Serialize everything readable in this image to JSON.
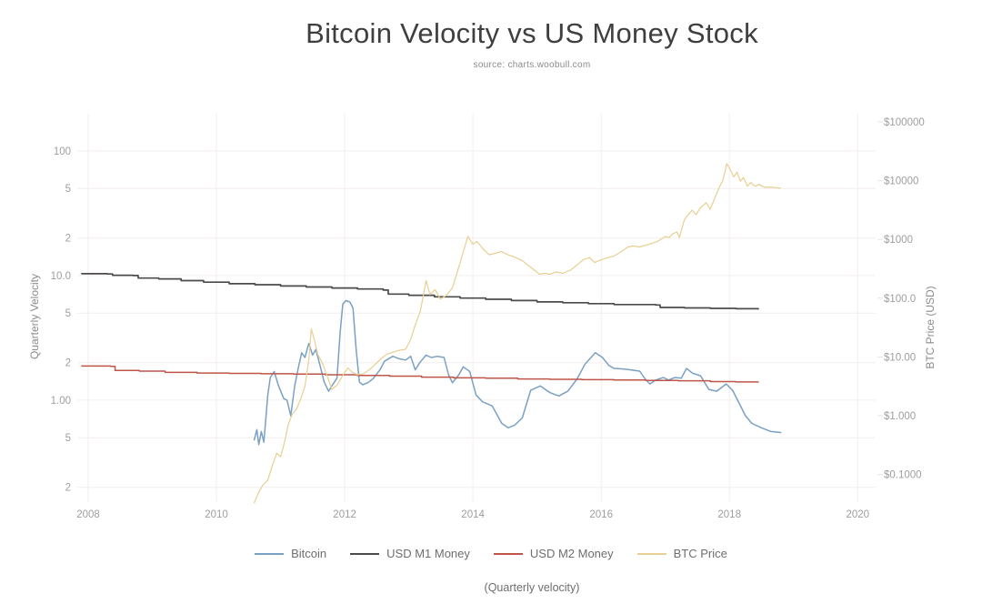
{
  "header": {
    "title": "Bitcoin Velocity vs US Money Stock",
    "subtitle": "source: charts.woobull.com"
  },
  "caption": "(Quarterly velocity)",
  "colors": {
    "bitcoin": "#7aa0c4",
    "usd_m1": "#4b4b4b",
    "usd_m2": "#bf5549",
    "btc_price": "#e8cf92",
    "grid": "#f4eeee",
    "tick_text": "#9e9e9e",
    "title_text": "#3f3f3f"
  },
  "chart_data": {
    "type": "line",
    "title": "Bitcoin Velocity vs US Money Stock",
    "xlabel": "",
    "ylabel_left": "Quarterly Velocity",
    "ylabel_right": "BTC Price (USD)",
    "grid": true,
    "legend_position": "bottom",
    "x_axis": {
      "scale": "linear",
      "range": [
        2007.83,
        2020.28
      ],
      "ticks": [
        2008,
        2010,
        2012,
        2014,
        2016,
        2018,
        2020
      ]
    },
    "y_left": {
      "label": "Quarterly Velocity",
      "scale": "log",
      "range": [
        0.152,
        199
      ],
      "ticks": [
        [
          100,
          "100"
        ],
        [
          50,
          "5"
        ],
        [
          20,
          "2"
        ],
        [
          10,
          "10.0"
        ],
        [
          5,
          "5"
        ],
        [
          2,
          "2"
        ],
        [
          1,
          "1.00"
        ],
        [
          0.5,
          "5"
        ],
        [
          0.2,
          "2"
        ]
      ]
    },
    "y_right": {
      "label": "BTC Price (USD)",
      "scale": "log",
      "range": [
        0.0339,
        137700
      ],
      "ticks": [
        [
          100000,
          "$100000"
        ],
        [
          10000,
          "$10000"
        ],
        [
          1000,
          "$1000"
        ],
        [
          100,
          "$100.0"
        ],
        [
          10,
          "$10.00"
        ],
        [
          1,
          "$1.000"
        ],
        [
          0.1,
          "$0.1000"
        ]
      ]
    },
    "series": [
      {
        "id": "bitcoin",
        "name": "Bitcoin",
        "axis": "left",
        "color": "#7aa0c4",
        "width": 1.5,
        "interp": "linear",
        "points": [
          [
            2010.59,
            0.48
          ],
          [
            2010.63,
            0.58
          ],
          [
            2010.66,
            0.44
          ],
          [
            2010.7,
            0.56
          ],
          [
            2010.74,
            0.46
          ],
          [
            2010.8,
            1.1
          ],
          [
            2010.84,
            1.52
          ],
          [
            2010.9,
            1.7
          ],
          [
            2010.97,
            1.3
          ],
          [
            2011.05,
            1.03
          ],
          [
            2011.1,
            1.0
          ],
          [
            2011.16,
            0.75
          ],
          [
            2011.22,
            1.3
          ],
          [
            2011.28,
            1.85
          ],
          [
            2011.33,
            2.4
          ],
          [
            2011.38,
            2.2
          ],
          [
            2011.44,
            2.85
          ],
          [
            2011.5,
            2.3
          ],
          [
            2011.55,
            2.55
          ],
          [
            2011.61,
            1.95
          ],
          [
            2011.68,
            1.4
          ],
          [
            2011.75,
            1.18
          ],
          [
            2011.82,
            1.35
          ],
          [
            2011.88,
            1.5
          ],
          [
            2011.93,
            3.5
          ],
          [
            2011.97,
            5.9
          ],
          [
            2012.02,
            6.3
          ],
          [
            2012.08,
            6.15
          ],
          [
            2012.13,
            5.5
          ],
          [
            2012.18,
            2.5
          ],
          [
            2012.23,
            1.4
          ],
          [
            2012.28,
            1.33
          ],
          [
            2012.36,
            1.38
          ],
          [
            2012.45,
            1.5
          ],
          [
            2012.55,
            1.75
          ],
          [
            2012.62,
            2.05
          ],
          [
            2012.75,
            2.25
          ],
          [
            2012.85,
            2.15
          ],
          [
            2012.95,
            2.1
          ],
          [
            2013.03,
            2.25
          ],
          [
            2013.1,
            1.75
          ],
          [
            2013.17,
            2.0
          ],
          [
            2013.27,
            2.3
          ],
          [
            2013.35,
            2.2
          ],
          [
            2013.45,
            2.25
          ],
          [
            2013.55,
            2.2
          ],
          [
            2013.62,
            1.6
          ],
          [
            2013.68,
            1.38
          ],
          [
            2013.78,
            1.6
          ],
          [
            2013.85,
            1.85
          ],
          [
            2013.95,
            1.7
          ],
          [
            2014.05,
            1.1
          ],
          [
            2014.15,
            0.97
          ],
          [
            2014.3,
            0.9
          ],
          [
            2014.45,
            0.65
          ],
          [
            2014.55,
            0.6
          ],
          [
            2014.65,
            0.63
          ],
          [
            2014.77,
            0.72
          ],
          [
            2014.9,
            1.2
          ],
          [
            2015.05,
            1.3
          ],
          [
            2015.2,
            1.15
          ],
          [
            2015.34,
            1.08
          ],
          [
            2015.48,
            1.18
          ],
          [
            2015.62,
            1.47
          ],
          [
            2015.75,
            1.95
          ],
          [
            2015.91,
            2.4
          ],
          [
            2016.02,
            2.2
          ],
          [
            2016.12,
            1.9
          ],
          [
            2016.2,
            1.8
          ],
          [
            2016.35,
            1.78
          ],
          [
            2016.5,
            1.74
          ],
          [
            2016.6,
            1.71
          ],
          [
            2016.69,
            1.47
          ],
          [
            2016.76,
            1.35
          ],
          [
            2016.85,
            1.45
          ],
          [
            2016.97,
            1.52
          ],
          [
            2017.05,
            1.45
          ],
          [
            2017.15,
            1.52
          ],
          [
            2017.25,
            1.5
          ],
          [
            2017.33,
            1.8
          ],
          [
            2017.42,
            1.65
          ],
          [
            2017.55,
            1.57
          ],
          [
            2017.68,
            1.22
          ],
          [
            2017.8,
            1.18
          ],
          [
            2017.95,
            1.35
          ],
          [
            2018.05,
            1.2
          ],
          [
            2018.15,
            0.95
          ],
          [
            2018.25,
            0.75
          ],
          [
            2018.35,
            0.65
          ],
          [
            2018.5,
            0.6
          ],
          [
            2018.65,
            0.56
          ],
          [
            2018.8,
            0.55
          ]
        ]
      },
      {
        "id": "usd-m1-money",
        "name": "USD M1 Money",
        "axis": "left",
        "color": "#4b4b4b",
        "width": 1.7,
        "interp": "step",
        "points": [
          [
            2007.9,
            10.35
          ],
          [
            2008.3,
            10.3
          ],
          [
            2008.38,
            10.05
          ],
          [
            2008.7,
            10.0
          ],
          [
            2008.78,
            9.55
          ],
          [
            2009.1,
            9.4
          ],
          [
            2009.45,
            9.1
          ],
          [
            2009.8,
            8.85
          ],
          [
            2010.2,
            8.6
          ],
          [
            2010.6,
            8.45
          ],
          [
            2011.0,
            8.25
          ],
          [
            2011.4,
            8.1
          ],
          [
            2011.8,
            7.95
          ],
          [
            2012.2,
            7.8
          ],
          [
            2012.6,
            7.65
          ],
          [
            2012.68,
            7.1
          ],
          [
            2013.0,
            6.95
          ],
          [
            2013.4,
            6.75
          ],
          [
            2013.8,
            6.6
          ],
          [
            2014.2,
            6.45
          ],
          [
            2014.6,
            6.3
          ],
          [
            2015.0,
            6.15
          ],
          [
            2015.4,
            6.05
          ],
          [
            2015.8,
            5.95
          ],
          [
            2016.2,
            5.85
          ],
          [
            2016.85,
            5.8
          ],
          [
            2016.92,
            5.55
          ],
          [
            2017.3,
            5.5
          ],
          [
            2017.7,
            5.45
          ],
          [
            2018.1,
            5.42
          ],
          [
            2018.45,
            5.4
          ]
        ]
      },
      {
        "id": "usd-m2-money",
        "name": "USD M2 Money",
        "axis": "left",
        "color": "#bf5549",
        "width": 1.5,
        "interp": "step",
        "points": [
          [
            2007.9,
            1.88
          ],
          [
            2008.35,
            1.87
          ],
          [
            2008.42,
            1.73
          ],
          [
            2008.8,
            1.71
          ],
          [
            2009.2,
            1.67
          ],
          [
            2009.7,
            1.65
          ],
          [
            2010.2,
            1.64
          ],
          [
            2010.7,
            1.63
          ],
          [
            2011.2,
            1.62
          ],
          [
            2011.7,
            1.6
          ],
          [
            2012.2,
            1.58
          ],
          [
            2012.7,
            1.56
          ],
          [
            2013.2,
            1.53
          ],
          [
            2013.7,
            1.51
          ],
          [
            2014.2,
            1.5
          ],
          [
            2014.7,
            1.48
          ],
          [
            2015.2,
            1.47
          ],
          [
            2015.7,
            1.46
          ],
          [
            2016.2,
            1.45
          ],
          [
            2016.7,
            1.44
          ],
          [
            2017.2,
            1.43
          ],
          [
            2017.7,
            1.41
          ],
          [
            2018.1,
            1.4
          ],
          [
            2018.45,
            1.4
          ]
        ]
      },
      {
        "id": "btc-price",
        "name": "BTC Price",
        "axis": "right",
        "color": "#e8cf92",
        "width": 1.2,
        "interp": "linear",
        "points": [
          [
            2010.59,
            0.033
          ],
          [
            2010.66,
            0.05
          ],
          [
            2010.72,
            0.065
          ],
          [
            2010.8,
            0.08
          ],
          [
            2010.87,
            0.14
          ],
          [
            2010.94,
            0.23
          ],
          [
            2011.0,
            0.2
          ],
          [
            2011.06,
            0.35
          ],
          [
            2011.12,
            0.7
          ],
          [
            2011.18,
            1.05
          ],
          [
            2011.25,
            1.3
          ],
          [
            2011.32,
            2.0
          ],
          [
            2011.38,
            3.2
          ],
          [
            2011.44,
            9.0
          ],
          [
            2011.48,
            30.0
          ],
          [
            2011.53,
            19.0
          ],
          [
            2011.58,
            11.0
          ],
          [
            2011.65,
            8.0
          ],
          [
            2011.72,
            5.0
          ],
          [
            2011.8,
            2.8
          ],
          [
            2011.88,
            3.3
          ],
          [
            2011.95,
            4.5
          ],
          [
            2012.05,
            6.5
          ],
          [
            2012.12,
            5.5
          ],
          [
            2012.2,
            5.0
          ],
          [
            2012.3,
            5.2
          ],
          [
            2012.42,
            6.5
          ],
          [
            2012.55,
            9.0
          ],
          [
            2012.65,
            11.0
          ],
          [
            2012.75,
            12.0
          ],
          [
            2012.85,
            13.0
          ],
          [
            2012.95,
            13.5
          ],
          [
            2013.03,
            20.0
          ],
          [
            2013.1,
            35.0
          ],
          [
            2013.18,
            60.0
          ],
          [
            2013.27,
            200.0
          ],
          [
            2013.33,
            115.0
          ],
          [
            2013.41,
            140.0
          ],
          [
            2013.49,
            97.0
          ],
          [
            2013.58,
            110.0
          ],
          [
            2013.68,
            150.0
          ],
          [
            2013.8,
            400.0
          ],
          [
            2013.92,
            1120.0
          ],
          [
            2014.0,
            830.0
          ],
          [
            2014.06,
            925.0
          ],
          [
            2014.16,
            690.0
          ],
          [
            2014.25,
            550.0
          ],
          [
            2014.35,
            580.0
          ],
          [
            2014.44,
            625.0
          ],
          [
            2014.55,
            545.0
          ],
          [
            2014.65,
            500.0
          ],
          [
            2014.77,
            435.0
          ],
          [
            2014.86,
            365.0
          ],
          [
            2014.95,
            305.0
          ],
          [
            2015.04,
            255.0
          ],
          [
            2015.12,
            265.0
          ],
          [
            2015.2,
            255.0
          ],
          [
            2015.3,
            280.0
          ],
          [
            2015.4,
            265.0
          ],
          [
            2015.52,
            300.0
          ],
          [
            2015.62,
            365.0
          ],
          [
            2015.72,
            450.0
          ],
          [
            2015.82,
            490.0
          ],
          [
            2015.9,
            405.0
          ],
          [
            2016.0,
            450.0
          ],
          [
            2016.1,
            490.0
          ],
          [
            2016.2,
            520.0
          ],
          [
            2016.32,
            625.0
          ],
          [
            2016.42,
            745.0
          ],
          [
            2016.5,
            775.0
          ],
          [
            2016.6,
            745.0
          ],
          [
            2016.75,
            830.0
          ],
          [
            2016.88,
            925.0
          ],
          [
            2017.0,
            1120.0
          ],
          [
            2017.06,
            1075.0
          ],
          [
            2017.12,
            1250.0
          ],
          [
            2017.18,
            1340.0
          ],
          [
            2017.22,
            1075.0
          ],
          [
            2017.3,
            2200.0
          ],
          [
            2017.42,
            3150.0
          ],
          [
            2017.48,
            2630.0
          ],
          [
            2017.55,
            3500.0
          ],
          [
            2017.64,
            4200.0
          ],
          [
            2017.7,
            3270.0
          ],
          [
            2017.77,
            5030.0
          ],
          [
            2017.85,
            8000.0
          ],
          [
            2017.9,
            10300.0
          ],
          [
            2017.96,
            19500.0
          ],
          [
            2018.02,
            14800.0
          ],
          [
            2018.07,
            11600.0
          ],
          [
            2018.12,
            13900.0
          ],
          [
            2018.17,
            9800.0
          ],
          [
            2018.22,
            11300.0
          ],
          [
            2018.28,
            8000.0
          ],
          [
            2018.33,
            9300.0
          ],
          [
            2018.4,
            8000.0
          ],
          [
            2018.46,
            8600.0
          ],
          [
            2018.55,
            7700.0
          ],
          [
            2018.68,
            7700.0
          ],
          [
            2018.8,
            7400.0
          ]
        ]
      }
    ]
  }
}
